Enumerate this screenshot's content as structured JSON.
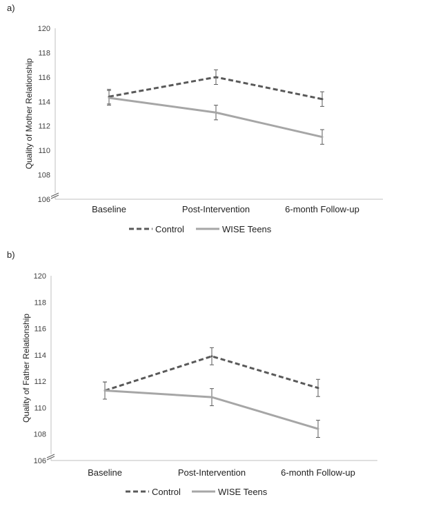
{
  "panels": [
    {
      "label": "a)"
    },
    {
      "label": "b)"
    }
  ],
  "colors": {
    "control": "#595959",
    "wise": "#a6a6a6",
    "axis": "#bfbfbf",
    "text": "#404040"
  },
  "chart_data": [
    {
      "type": "line",
      "title": "",
      "xlabel": "",
      "ylabel": "Quality of Mother Relationship",
      "categories": [
        "Baseline",
        "Post-Intervention",
        "6-month Follow-up"
      ],
      "ylim": [
        106,
        120
      ],
      "yticks": [
        "106",
        "108",
        "110",
        "112",
        "114",
        "116",
        "118",
        "120"
      ],
      "grid": false,
      "axis_break": true,
      "legend_position": "bottom",
      "series": [
        {
          "name": "Control",
          "style": "dashed",
          "values": [
            114.4,
            116.0,
            114.2
          ],
          "errors": [
            0.6,
            0.6,
            0.6
          ]
        },
        {
          "name": "WISE Teens",
          "style": "solid",
          "values": [
            114.3,
            113.1,
            111.1
          ],
          "errors": [
            0.6,
            0.6,
            0.6
          ]
        }
      ]
    },
    {
      "type": "line",
      "title": "",
      "xlabel": "",
      "ylabel": "Quality of Father Relationship",
      "categories": [
        "Baseline",
        "Post-Intervention",
        "6-month Follow-up"
      ],
      "ylim": [
        106,
        120
      ],
      "yticks": [
        "106",
        "108",
        "110",
        "112",
        "114",
        "116",
        "118",
        "120"
      ],
      "grid": false,
      "axis_break": true,
      "legend_position": "bottom",
      "series": [
        {
          "name": "Control",
          "style": "dashed",
          "values": [
            111.3,
            113.9,
            111.5
          ],
          "errors": [
            0.65,
            0.65,
            0.65
          ]
        },
        {
          "name": "WISE Teens",
          "style": "solid",
          "values": [
            111.3,
            110.8,
            108.4
          ],
          "errors": [
            0.65,
            0.65,
            0.65
          ]
        }
      ]
    }
  ]
}
